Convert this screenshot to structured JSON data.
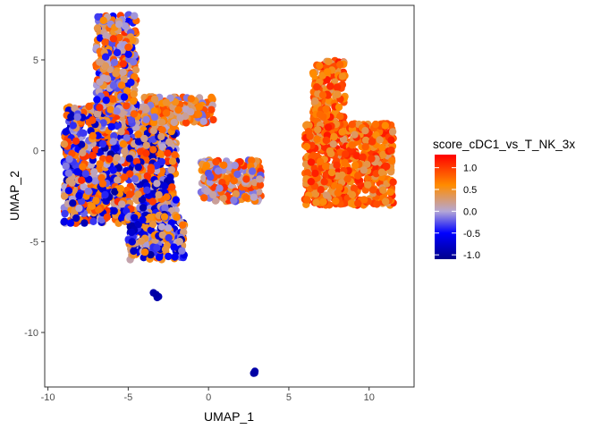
{
  "chart_data": {
    "type": "scatter",
    "xlabel": "UMAP_1",
    "ylabel": "UMAP_2",
    "xlim": [
      -10.2,
      12.8
    ],
    "ylim": [
      -13.0,
      8.0
    ],
    "xticks": [
      -10,
      -5,
      0,
      5,
      10
    ],
    "xtick_labels": [
      "-10",
      "-5",
      "0",
      "5",
      "10"
    ],
    "yticks": [
      5,
      0,
      -5,
      -10
    ],
    "ytick_labels": [
      "5",
      "0",
      "-5",
      "-10"
    ],
    "grid": false,
    "legend": {
      "title": "score_cDC1_vs_T_NK_3x",
      "placement": "right",
      "range": [
        -1.1,
        1.3
      ],
      "breaks": [
        1.0,
        0.5,
        0.0,
        -0.5,
        -1.0
      ],
      "break_labels": [
        "1.0",
        "0.5",
        "0.0",
        "-0.5",
        "-1.0"
      ],
      "colors": [
        {
          "value": -1.1,
          "color": "#00008b"
        },
        {
          "value": -0.5,
          "color": "#0000ff"
        },
        {
          "value": 0.0,
          "color": "#b4a7d6"
        },
        {
          "value": 0.6,
          "color": "#ff8c00"
        },
        {
          "value": 1.3,
          "color": "#ff0000"
        }
      ]
    },
    "clusters": [
      {
        "region": "left main cluster body",
        "x": [
          -9,
          -2
        ],
        "y": [
          -4,
          2.5
        ],
        "score_range": [
          -1.0,
          1.1
        ]
      },
      {
        "region": "left cluster upper arm",
        "x": [
          -7,
          -4.5
        ],
        "y": [
          2,
          7.5
        ],
        "score_range": [
          -0.6,
          1.1
        ]
      },
      {
        "region": "left cluster right shoulder",
        "x": [
          -4,
          0.3
        ],
        "y": [
          1.5,
          3
        ],
        "score_range": [
          -0.2,
          1.0
        ]
      },
      {
        "region": "left cluster lower lobe",
        "x": [
          -5,
          -1.5
        ],
        "y": [
          -6,
          -3.5
        ],
        "score_range": [
          -1.0,
          0.8
        ]
      },
      {
        "region": "bridge cluster",
        "x": [
          -0.5,
          3.3
        ],
        "y": [
          -2.8,
          -0.5
        ],
        "score_range": [
          -0.3,
          1.1
        ]
      },
      {
        "region": "right cluster upper arm",
        "x": [
          6.5,
          8.5
        ],
        "y": [
          1,
          5
        ],
        "score_range": [
          0.3,
          1.2
        ]
      },
      {
        "region": "right cluster body",
        "x": [
          6,
          11.5
        ],
        "y": [
          -3,
          1.5
        ],
        "score_range": [
          0.3,
          1.2
        ]
      },
      {
        "region": "small island",
        "x": [
          -3.5,
          -3.1
        ],
        "y": [
          -8.1,
          -7.7
        ],
        "score_range": [
          -1.0,
          -0.9
        ]
      },
      {
        "region": "outlier",
        "x": [
          2.8,
          2.9
        ],
        "y": [
          -12.3,
          -12.1
        ],
        "score_range": [
          -1.0,
          -0.9
        ]
      }
    ]
  }
}
